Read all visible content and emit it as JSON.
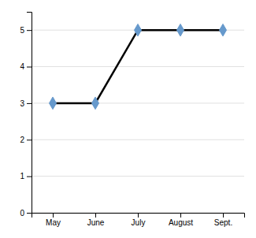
{
  "chart_data": {
    "type": "line",
    "categories": [
      "May",
      "June",
      "July",
      "August",
      "Sept."
    ],
    "values": [
      3,
      3,
      5,
      5,
      5
    ],
    "color": "black",
    "colors": [
      "#6699cc",
      "#6699cc",
      "#6699cc",
      "#6699cc",
      "#6699cc"
    ],
    "marker": "diamond",
    "ylim": [
      0,
      5.5
    ],
    "yticks": [
      0,
      1,
      2,
      3,
      4,
      5
    ],
    "grid": true
  }
}
